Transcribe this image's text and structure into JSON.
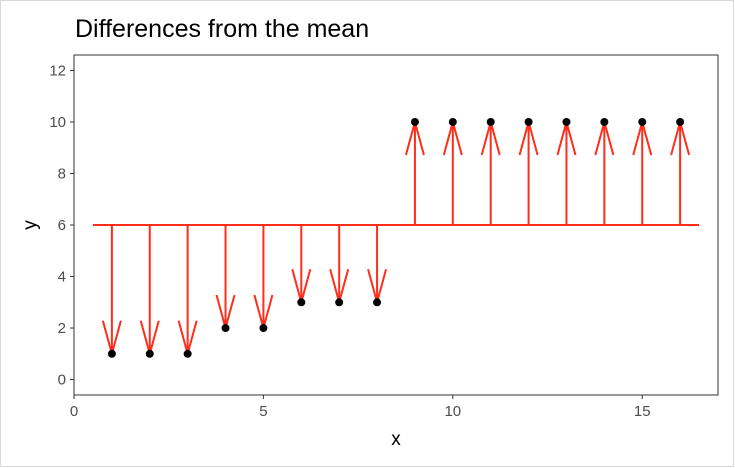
{
  "chart_data": {
    "type": "scatter",
    "title": "Differences from the mean",
    "xlabel": "x",
    "ylabel": "y",
    "xlim": [
      0,
      17
    ],
    "ylim": [
      -0.6,
      12.6
    ],
    "x_ticks": [
      0,
      5,
      10,
      15
    ],
    "y_ticks": [
      0,
      2,
      4,
      6,
      8,
      10,
      12
    ],
    "grid": false,
    "mean": 6,
    "mean_line": {
      "x_start": 0.5,
      "x_end": 16.5
    },
    "x": [
      1,
      2,
      3,
      4,
      5,
      6,
      7,
      8,
      9,
      10,
      11,
      12,
      13,
      14,
      15,
      16
    ],
    "y": [
      1,
      1,
      1,
      2,
      2,
      3,
      3,
      3,
      10,
      10,
      10,
      10,
      10,
      10,
      10,
      10
    ],
    "colors": {
      "points": "#000000",
      "arrows": "#ff2d1a",
      "mean_line": "#ff2d1a",
      "panel_border": "#333333",
      "tick_text": "#4d4d4d"
    }
  }
}
